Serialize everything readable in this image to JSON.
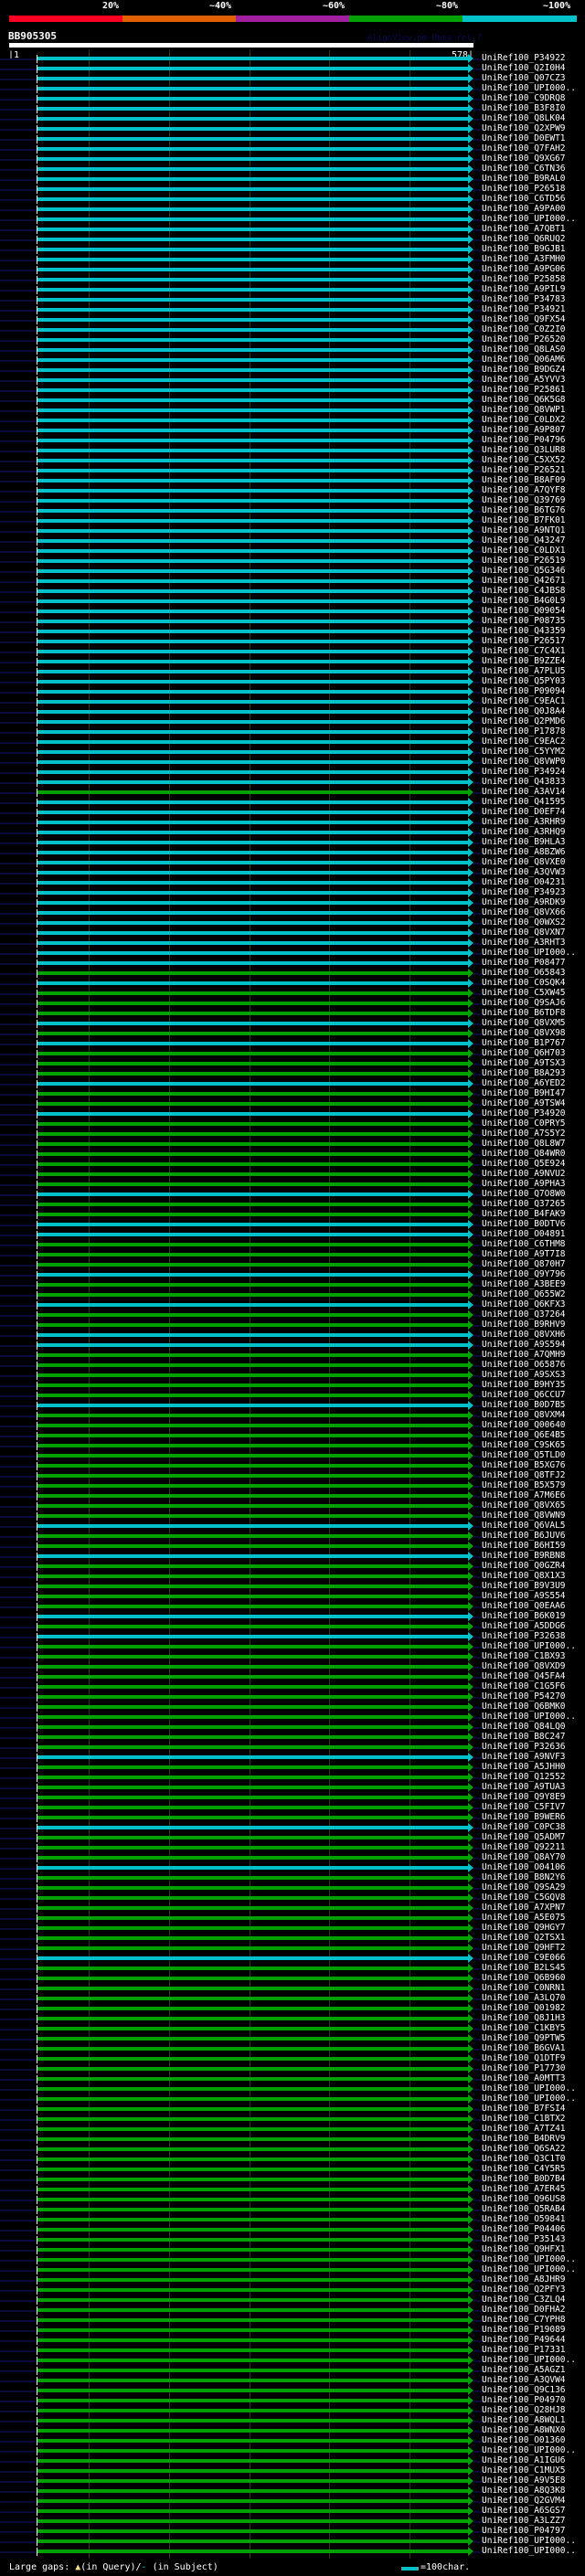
{
  "legend_scale": [
    {
      "label": "20%",
      "color": "#ff0022"
    },
    {
      "label": "~40%",
      "color": "#e06000"
    },
    {
      "label": "~60%",
      "color": "#a020a0"
    },
    {
      "label": "~80%",
      "color": "#00a000"
    },
    {
      "label": "~100%",
      "color": "#00c0c8"
    }
  ],
  "query": {
    "name": "BB905305",
    "start": "|1",
    "end": "578|",
    "length": 578
  },
  "tool_name": "AlignView.pm Beta rel.7",
  "footer": {
    "gaps_label": "Large gaps:",
    "gap_query_symbol": "▲",
    "gap_query": "(in Query)/",
    "gap_subject_symbol": "-",
    "gap_subject": " (in Subject)",
    "scale_label": "=100char."
  },
  "colors": {
    "c": "#00c0c8",
    "g": "#00a000"
  },
  "hits": [
    "UniRef100_P34922|c",
    "UniRef100_Q2I0H4|c",
    "UniRef100_Q07CZ3|c",
    "UniRef100_UPI000..|c",
    "UniRef100_C9DRQ8|c",
    "UniRef100_B3F8I0|c",
    "UniRef100_Q8LK04|c",
    "UniRef100_Q2XPW9|c",
    "UniRef100_D0EWT1|c",
    "UniRef100_Q7FAH2|c",
    "UniRef100_Q9XG67|c",
    "UniRef100_C6TN36|c",
    "UniRef100_B9RAL0|c",
    "UniRef100_P26518|c",
    "UniRef100_C6TD56|c",
    "UniRef100_A9PA00|c",
    "UniRef100_UPI000..|c",
    "UniRef100_A7QBT1|c",
    "UniRef100_Q6RUQ2|c",
    "UniRef100_B9GJB1|c",
    "UniRef100_A3FMH0|c",
    "UniRef100_A9PG06|c",
    "UniRef100_P25858|c",
    "UniRef100_A9PIL9|c",
    "UniRef100_P34783|c",
    "UniRef100_P34921|c",
    "UniRef100_Q9FX54|c",
    "UniRef100_C0Z2I0|c",
    "UniRef100_P26520|c",
    "UniRef100_Q8LAS0|c",
    "UniRef100_Q06AM6|c",
    "UniRef100_B9DGZ4|c",
    "UniRef100_A5YVV3|c",
    "UniRef100_P25861|c",
    "UniRef100_Q6K5G8|c",
    "UniRef100_Q8VWP1|c",
    "UniRef100_C0LDX2|c",
    "UniRef100_A9P807|c",
    "UniRef100_P04796|c",
    "UniRef100_Q3LUR8|c",
    "UniRef100_C5XX52|c",
    "UniRef100_P26521|c",
    "UniRef100_B8AF09|c",
    "UniRef100_A7QYF8|c",
    "UniRef100_Q39769|c",
    "UniRef100_B6TG76|c",
    "UniRef100_B7FK01|c",
    "UniRef100_A9NTQ1|c",
    "UniRef100_Q43247|c",
    "UniRef100_C0LDX1|c",
    "UniRef100_P26519|c",
    "UniRef100_Q5G346|c",
    "UniRef100_Q42671|c",
    "UniRef100_C4JBS8|c",
    "UniRef100_B4G0L9|c",
    "UniRef100_Q09054|c",
    "UniRef100_P08735|c",
    "UniRef100_Q43359|c",
    "UniRef100_P26517|c",
    "UniRef100_C7C4X1|c",
    "UniRef100_B9ZZE4|c",
    "UniRef100_A7PLU5|c",
    "UniRef100_Q5PY03|c",
    "UniRef100_P09094|c",
    "UniRef100_C9EAC1|c",
    "UniRef100_Q0J8A4|c",
    "UniRef100_Q2PMD6|c",
    "UniRef100_P17878|c",
    "UniRef100_C9EAC2|c",
    "UniRef100_C5YYM2|c",
    "UniRef100_Q8VWP0|c",
    "UniRef100_P34924|c",
    "UniRef100_Q43833|c",
    "UniRef100_A3AV14|g",
    "UniRef100_Q41595|c",
    "UniRef100_D0EF74|c",
    "UniRef100_A3RHR9|c",
    "UniRef100_A3RHQ9|c",
    "UniRef100_B9HLA3|c",
    "UniRef100_A8BZW6|c",
    "UniRef100_Q8VXE0|c",
    "UniRef100_A3QVW3|c",
    "UniRef100_O04231|c",
    "UniRef100_P34923|c",
    "UniRef100_A9RDK9|c",
    "UniRef100_Q8VX66|c",
    "UniRef100_Q0WXS2|c",
    "UniRef100_Q8VXN7|c",
    "UniRef100_A3RHT3|c",
    "UniRef100_UPI000..|c",
    "UniRef100_P08477|c",
    "UniRef100_O65843|g",
    "UniRef100_C0SQK4|c",
    "UniRef100_C5XW45|g",
    "UniRef100_Q9SAJ6|g",
    "UniRef100_B6TDF8|g",
    "UniRef100_Q8VXM5|c",
    "UniRef100_Q8VX98|g",
    "UniRef100_B1P767|c",
    "UniRef100_Q6H703|g",
    "UniRef100_A9TSX3|g",
    "UniRef100_B8A293|g",
    "UniRef100_A6YED2|c",
    "UniRef100_B9HI47|g",
    "UniRef100_A9TSW4|g",
    "UniRef100_P34920|c",
    "UniRef100_C0PRY5|g",
    "UniRef100_A7S5Y2|g",
    "UniRef100_Q8L8W7|g",
    "UniRef100_Q84WR0|g",
    "UniRef100_Q5E924|g",
    "UniRef100_A9NVU2|g",
    "UniRef100_A9PHA3|g",
    "UniRef100_Q7O8W0|c",
    "UniRef100_Q37265|g",
    "UniRef100_B4FAK9|g",
    "UniRef100_B0DTV6|c",
    "UniRef100_O04891|c",
    "UniRef100_C6THM8|g",
    "UniRef100_A9T7I8|g",
    "UniRef100_Q870H7|g",
    "UniRef100_Q9Y796|c",
    "UniRef100_A3BEE9|g",
    "UniRef100_Q655W2|g",
    "UniRef100_Q6KFX3|c",
    "UniRef100_Q37264|g",
    "UniRef100_B9RHV9|g",
    "UniRef100_Q8VXH6|c",
    "UniRef100_A9S594|c",
    "UniRef100_A7QMH9|g",
    "UniRef100_O65876|g",
    "UniRef100_A9SXS3|g",
    "UniRef100_B9HY35|g",
    "UniRef100_Q6CCU7|g",
    "UniRef100_B0D7B5|c",
    "UniRef100_Q8VXM4|g",
    "UniRef100_Q00640|g",
    "UniRef100_Q6E4B5|g",
    "UniRef100_C9SK65|g",
    "UniRef100_Q5TLD0|g",
    "UniRef100_B5XG76|g",
    "UniRef100_Q8TFJ2|g",
    "UniRef100_B5X579|g",
    "UniRef100_A7M6E6|g",
    "UniRef100_Q8VX65|g",
    "UniRef100_Q8VWN9|g",
    "UniRef100_Q6VAL5|c",
    "UniRef100_B6JUV6|g",
    "UniRef100_B6HI59|g",
    "UniRef100_B9RBN8|c",
    "UniRef100_Q0GZR4|g",
    "UniRef100_Q8X1X3|g",
    "UniRef100_B9V3U9|g",
    "UniRef100_A9S554|g",
    "UniRef100_Q0EAA6|g",
    "UniRef100_B6K019|c",
    "UniRef100_A5DDG6|g",
    "UniRef100_P32638|c",
    "UniRef100_UPI000..|g",
    "UniRef100_C1BX93|g",
    "UniRef100_Q8VXD9|g",
    "UniRef100_Q45FA4|g",
    "UniRef100_C1G5F6|g",
    "UniRef100_P54270|g",
    "UniRef100_Q6BMK0|g",
    "UniRef100_UPI000..|g",
    "UniRef100_Q84LQ0|g",
    "UniRef100_B8C247|g",
    "UniRef100_P32636|g",
    "UniRef100_A9NVF3|c",
    "UniRef100_A5JHH0|g",
    "UniRef100_Q12552|g",
    "UniRef100_A9TUA3|g",
    "UniRef100_Q9Y8E9|g",
    "UniRef100_C5FIV7|g",
    "UniRef100_B9WER6|g",
    "UniRef100_C0PC38|c",
    "UniRef100_Q5ADM7|g",
    "UniRef100_Q92211|g",
    "UniRef100_Q8AY70|g",
    "UniRef100_O04106|c",
    "UniRef100_B8N2Y6|g",
    "UniRef100_Q9SA29|g",
    "UniRef100_C5GQV8|g",
    "UniRef100_A7XPN7|g",
    "UniRef100_A5E075|g",
    "UniRef100_Q9HGY7|g",
    "UniRef100_Q2TSX1|g",
    "UniRef100_Q9HFT2|g",
    "UniRef100_C9E066|c",
    "UniRef100_B2LS45|g",
    "UniRef100_Q6B960|g",
    "UniRef100_C0NRN1|g",
    "UniRef100_A3LQ70|g",
    "UniRef100_Q01982|g",
    "UniRef100_Q8J1H3|g",
    "UniRef100_C1KBY5|g",
    "UniRef100_Q9PTW5|g",
    "UniRef100_B6GVA1|g",
    "UniRef100_Q1DTF9|g",
    "UniRef100_P17730|g",
    "UniRef100_A0MTT3|g",
    "UniRef100_UPI000..|g",
    "UniRef100_UPI000..|g",
    "UniRef100_B7FSI4|g",
    "UniRef100_C1BTX2|g",
    "UniRef100_A7TZ41|g",
    "UniRef100_B4DRV9|g",
    "UniRef100_Q6SA22|g",
    "UniRef100_Q3C1T0|g",
    "UniRef100_C4Y5R5|g",
    "UniRef100_B0D7B4|g",
    "UniRef100_A7ER45|g",
    "UniRef100_Q96US8|g",
    "UniRef100_Q5RAB4|g",
    "UniRef100_O59841|g",
    "UniRef100_P04406|g",
    "UniRef100_P35143|g",
    "UniRef100_Q9HFX1|g",
    "UniRef100_UPI000..|g",
    "UniRef100_UPI000..|g",
    "UniRef100_A8JHR9|g",
    "UniRef100_Q2PFY3|g",
    "UniRef100_C3ZLQ4|g",
    "UniRef100_D0FHA2|g",
    "UniRef100_C7YPH8|g",
    "UniRef100_P19089|g",
    "UniRef100_P49644|g",
    "UniRef100_P17331|g",
    "UniRef100_UPI000..|g",
    "UniRef100_A5AGZ1|g",
    "UniRef100_A3QVW4|g",
    "UniRef100_Q9C136|g",
    "UniRef100_P04970|g",
    "UniRef100_Q28HJ8|g",
    "UniRef100_A8WQL1|g",
    "UniRef100_A8WNX0|g",
    "UniRef100_O01360|g",
    "UniRef100_UPI000..|g",
    "UniRef100_A1IGU6|g",
    "UniRef100_C1MUX5|g",
    "UniRef100_A9V5E8|g",
    "UniRef100_A8Q3K8|g",
    "UniRef100_Q2GVM4|g",
    "UniRef100_A6SGS7|g",
    "UniRef100_A3LZZ7|g",
    "UniRef100_P04797|g",
    "UniRef100_UPI000..|g",
    "UniRef100_UPI000..|g"
  ]
}
